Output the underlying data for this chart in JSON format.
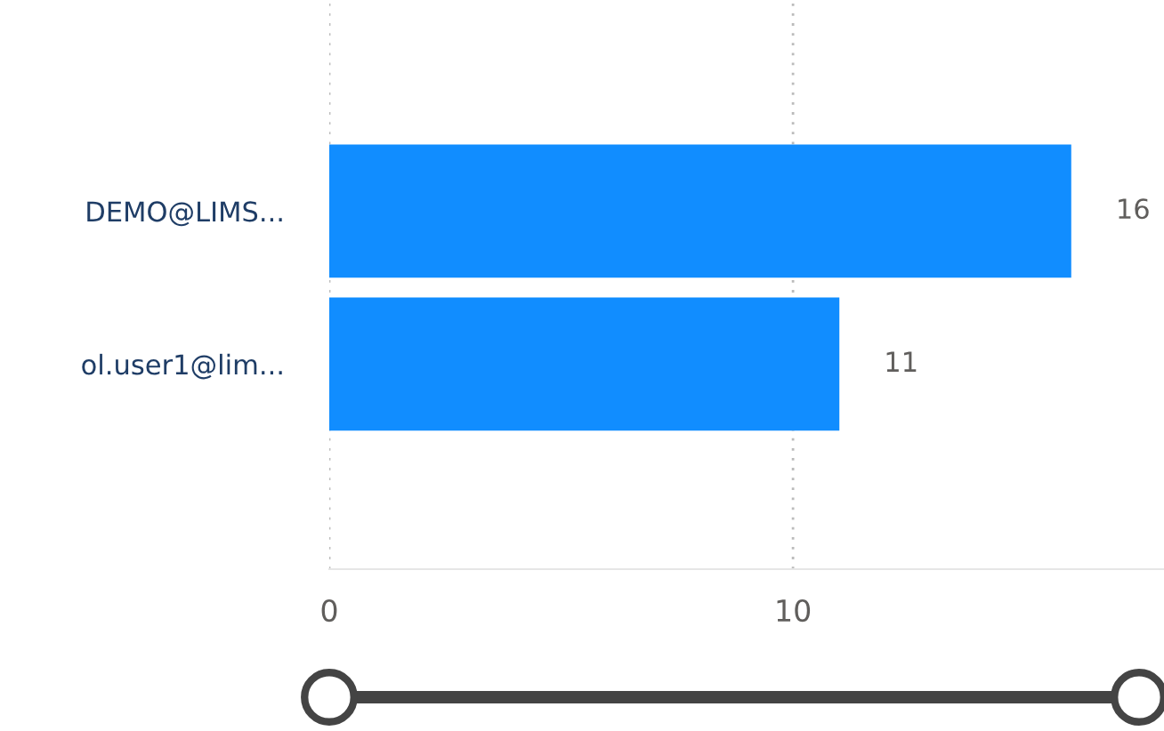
{
  "chart_data": {
    "type": "bar",
    "orientation": "horizontal",
    "categories": [
      "DEMO@LIMS...",
      "ol.user1@lim..."
    ],
    "values": [
      16,
      11
    ],
    "color": "#118dff",
    "xlim": [
      0,
      18
    ],
    "xticks": [
      0,
      10
    ],
    "grid": "x",
    "data_labels": true
  }
}
